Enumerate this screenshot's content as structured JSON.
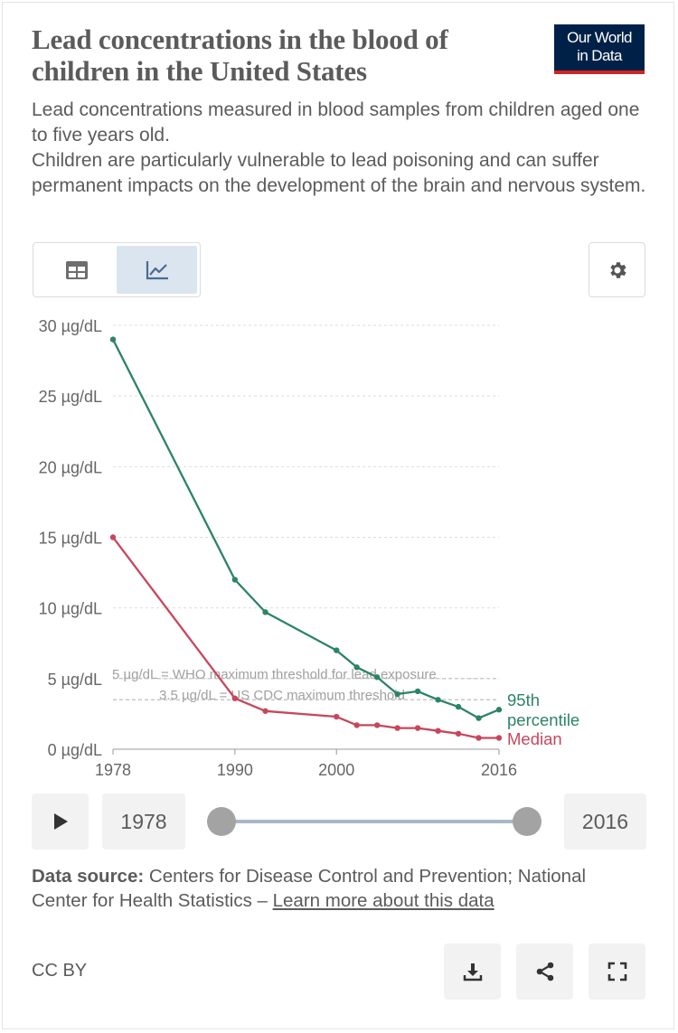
{
  "header": {
    "title": "Lead concentrations in the blood of children in the United States",
    "logo_line1": "Our World",
    "logo_line2": "in Data",
    "subtitle_line1": "Lead concentrations measured in blood samples from children aged one to five years old.",
    "subtitle_line2": "Children are particularly vulnerable to lead poisoning and can suffer permanent impacts on the development of the brain and nervous system."
  },
  "tabs": [
    {
      "name": "table",
      "icon": "table-icon",
      "selected": false
    },
    {
      "name": "chart",
      "icon": "line-chart-icon",
      "selected": true
    }
  ],
  "settings_icon": "gear-icon",
  "chart_data": {
    "type": "line",
    "unit": "µg/dL",
    "yticks": [
      "30 µg/dL",
      "25 µg/dL",
      "20 µg/dL",
      "15 µg/dL",
      "10 µg/dL",
      "5 µg/dL",
      "0 µg/dL"
    ],
    "ylim": [
      0,
      30
    ],
    "xticks": [
      "1978",
      "1990",
      "2000",
      "2016"
    ],
    "xlim": [
      1978,
      2016
    ],
    "grid": true,
    "series": [
      {
        "name": "95th percentile",
        "color": "#2c8465",
        "x": [
          1978,
          1990,
          1993,
          2000,
          2002,
          2004,
          2006,
          2008,
          2010,
          2012,
          2014,
          2016
        ],
        "y": [
          29.0,
          12.0,
          9.7,
          7.0,
          5.8,
          5.1,
          3.9,
          4.1,
          3.5,
          3.0,
          2.2,
          2.8
        ]
      },
      {
        "name": "Median",
        "color": "#c8465d",
        "x": [
          1978,
          1990,
          1993,
          2000,
          2002,
          2004,
          2006,
          2008,
          2010,
          2012,
          2014,
          2016
        ],
        "y": [
          15.0,
          3.6,
          2.7,
          2.3,
          1.7,
          1.7,
          1.5,
          1.5,
          1.3,
          1.1,
          0.8,
          0.8
        ]
      }
    ],
    "thresholds": [
      {
        "value": 5,
        "label": "5 µg/dL = WHO maximum threshold for lead exposure"
      },
      {
        "value": 3.5,
        "label": "3.5 µg/dL = US CDC maximum threshold"
      }
    ],
    "label_95th_line1": "95th",
    "label_95th_line2": "percentile",
    "label_median": "Median"
  },
  "timeline": {
    "play_icon": "play-icon",
    "start_year": "1978",
    "end_year": "2016"
  },
  "footer": {
    "source_label": "Data source:",
    "source_text": " Centers for Disease Control and Prevention; National Center for Health Statistics – ",
    "learn_more": "Learn more about this data",
    "license": "CC BY",
    "buttons": [
      "download-icon",
      "share-icon",
      "fullscreen-icon"
    ]
  }
}
